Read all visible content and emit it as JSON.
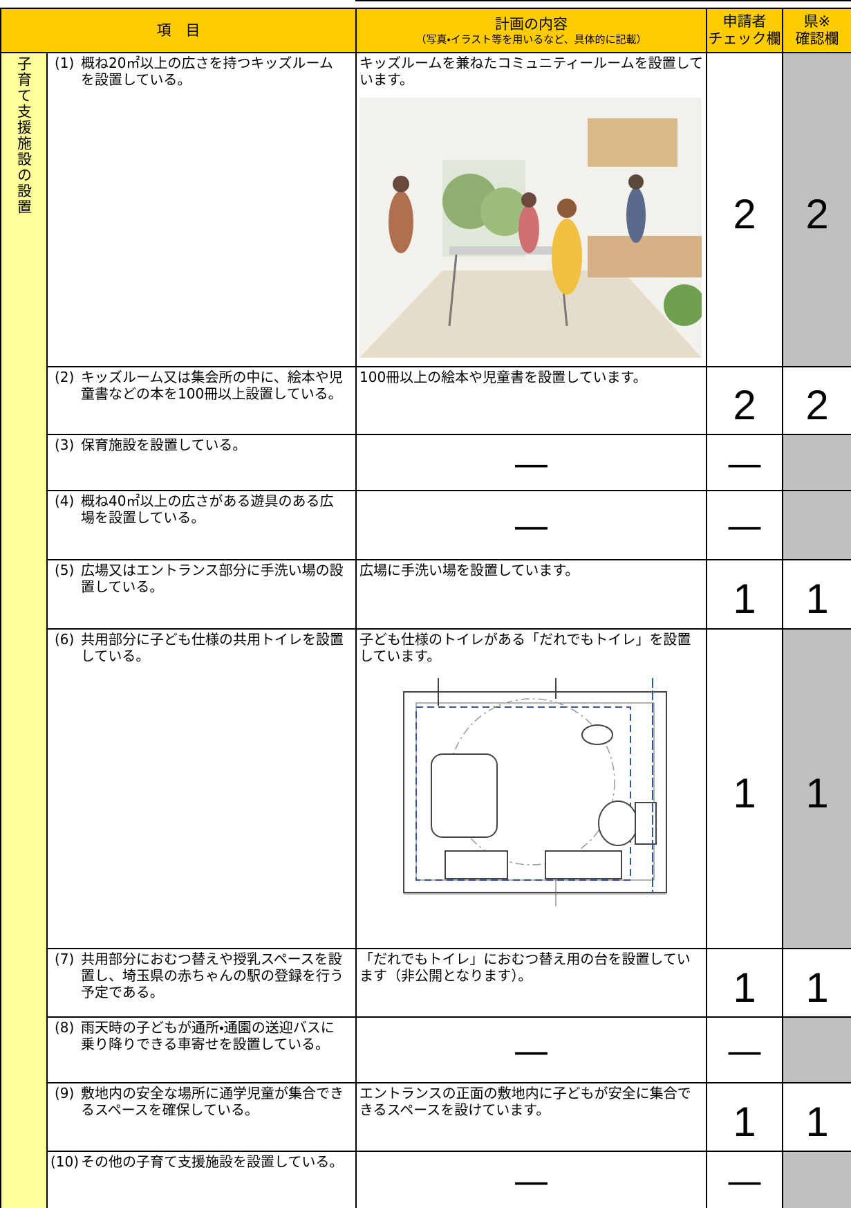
{
  "header": {
    "item": "項　目",
    "content_title": "計画の内容",
    "content_note": "（写真・イラスト等を用いるなど、具体的に記載）",
    "applicant": [
      "申請者",
      "チェック欄"
    ],
    "prefecture": [
      "県※",
      "確認欄"
    ]
  },
  "category": "子育て支援施設の設置",
  "rows": [
    {
      "number": "(1)",
      "item": "概ね20㎡以上の広さを持つキッズルームを設置している。",
      "content": "キッズルームを兼ねたコミュニティールームを設置しています。",
      "applicant": 2,
      "prefecture": 2
    },
    {
      "number": "(2)",
      "item": "キッズルーム又は集会所の中に、絵本や児童書などの本を100冊以上設置している。",
      "content": "100冊以上の絵本や児童書を設置しています。",
      "applicant": 2,
      "prefecture": 2
    },
    {
      "number": "(3)",
      "item": "保育施設を設置している。",
      "content": "—",
      "applicant": "—"
    },
    {
      "number": "(4)",
      "item": "概ね40㎡以上の広さがある遊具のある広場を設置している。",
      "content": "—",
      "applicant": "—"
    },
    {
      "number": "(5)",
      "item": "広場又はエントランス部分に手洗い場の設置している。",
      "content": "広場に手洗い場を設置しています。",
      "applicant": 1,
      "prefecture": 1
    },
    {
      "number": "(6)",
      "item": "共用部分に子ども仕様の共用トイレを設置している。",
      "content": "子ども仕様のトイレがある「だれでもトイレ」を設置しています。",
      "applicant": 1,
      "prefecture": 1
    },
    {
      "number": "(7)",
      "item": "共用部分におむつ替えや授乳スペースを設置し、埼玉県の赤ちゃんの駅の登録を行う予定である。",
      "content": "「だれでもトイレ」におむつ替え用の台を設置しています（非公開となります）。",
      "applicant": 1,
      "prefecture": 1
    },
    {
      "number": "(8)",
      "item": "雨天時の子どもが通所・通園の送迎バスに乗り降りできる車寄せを設置している。",
      "content": "—",
      "applicant": "—"
    },
    {
      "number": "(9)",
      "item": "敷地内の安全な場所に通学児童が集合できるスペースを確保している。",
      "content": "エントランスの正面の敷地内に子どもが安全に集合できるスペースを設けています。",
      "applicant": 1,
      "prefecture": 1
    },
    {
      "number": "(10)",
      "item": "その他の子育て支援施設を設置している。",
      "content": "—",
      "applicant": "—"
    }
  ]
}
